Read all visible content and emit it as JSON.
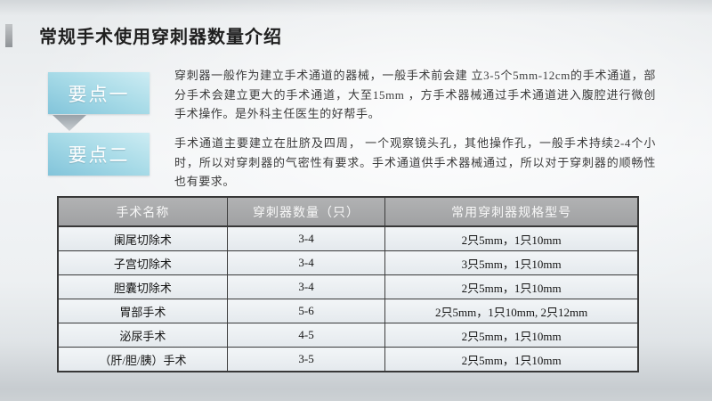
{
  "slide": {
    "title": "常规手术使用穿刺器数量介绍"
  },
  "callouts": [
    {
      "label": "要点一"
    },
    {
      "label": "要点二"
    }
  ],
  "paragraphs": {
    "p1": "穿刺器一般作为建立手术通道的器械，一般手术前会建 立3-5个5mm-12cm的手术通道，部分手术会建立更大的手术通道，大至15mm ，方手术器械通过手术通道进入腹腔进行微创手术操作。是外科主任医生的好帮手。",
    "p2": "手术通道主要建立在肚脐及四周， 一个观察镜头孔，其他操作孔，一般手术持续2-4个小时，所以对穿刺器的气密性有要求。手术通道供手术器械通过，所以对于穿刺器的顺畅性也有要求。"
  },
  "table": {
    "headers": [
      "手术名称",
      "穿刺器数量（只）",
      "常用穿刺器规格型号"
    ],
    "rows": [
      [
        "阑尾切除术",
        "3-4",
        "2只5mm，1只10mm"
      ],
      [
        "子宫切除术",
        "3-4",
        "3只5mm，1只10mm"
      ],
      [
        "胆囊切除术",
        "3-4",
        "2只5mm，1只10mm"
      ],
      [
        "胃部手术",
        "5-6",
        "2只5mm，1只10mm, 2只12mm"
      ],
      [
        "泌尿手术",
        "4-5",
        "2只5mm，1只10mm"
      ],
      [
        "（肝/胆/胰）手术",
        "3-5",
        "2只5mm，1只10mm"
      ]
    ]
  },
  "colors": {
    "callout_gradient_start": "#82c4da",
    "callout_gradient_end": "#cdecf3",
    "table_header_bg": "#a8a9ab",
    "accent_bar": "#9aa0a4",
    "border": "#3d3d3d"
  }
}
